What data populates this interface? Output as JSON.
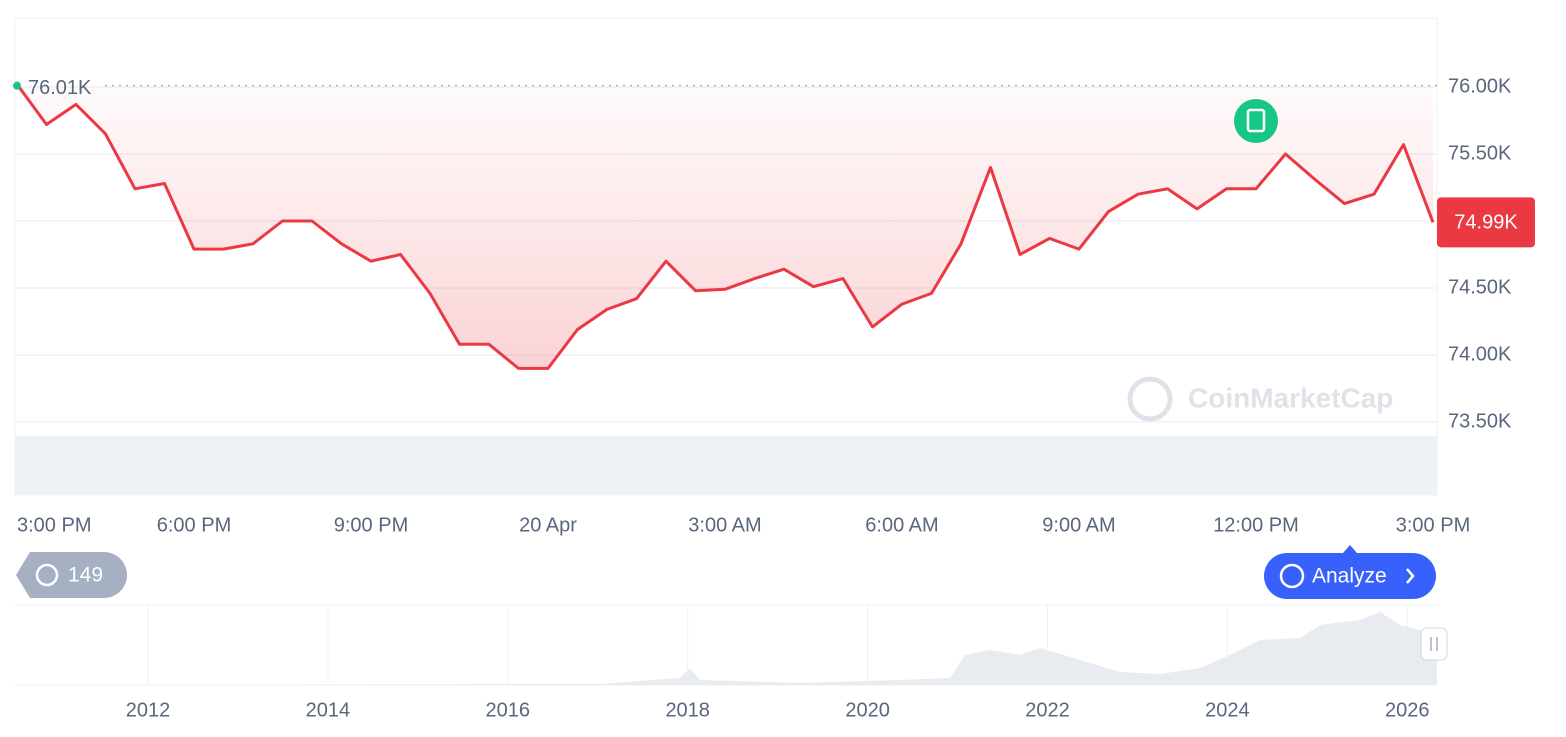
{
  "chart_data": {
    "type": "line",
    "categories": [
      "3:00 PM",
      null,
      null,
      null,
      null,
      null,
      "6:00 PM",
      null,
      null,
      null,
      null,
      null,
      "9:00 PM",
      null,
      null,
      null,
      null,
      null,
      "20 Apr",
      null,
      null,
      null,
      null,
      null,
      "3:00 AM",
      null,
      null,
      null,
      null,
      null,
      "6:00 AM",
      null,
      null,
      null,
      null,
      null,
      "9:00 AM",
      null,
      null,
      null,
      null,
      null,
      "12:00 PM",
      null,
      null,
      null,
      null,
      null,
      "3:00 PM"
    ],
    "series": [
      {
        "color": "#ea3943",
        "values": [
          76020,
          75720,
          75870,
          75650,
          75240,
          75280,
          74790,
          74790,
          74830,
          75000,
          75000,
          74830,
          74700,
          74750,
          74460,
          74080,
          74080,
          73900,
          73900,
          74190,
          74340,
          74420,
          74700,
          74480,
          74490,
          74570,
          74640,
          74510,
          74570,
          74210,
          74380,
          74460,
          74830,
          75400,
          74750,
          74870,
          74790,
          75070,
          75200,
          75240,
          75090,
          75240,
          75240,
          75500,
          75310,
          75130,
          75200,
          75570,
          74990
        ]
      }
    ],
    "ylim": [
      73500,
      76500
    ],
    "yticks": [
      {
        "value": 73500,
        "label": "73.50K"
      },
      {
        "value": 74000,
        "label": "74.00K"
      },
      {
        "value": 74500,
        "label": "74.50K"
      },
      {
        "value": 75000,
        "label": "75.00K"
      },
      {
        "value": 75500,
        "label": "75.50K"
      },
      {
        "value": 76000,
        "label": "76.00K"
      }
    ],
    "grid": true,
    "annotations": [
      {
        "value": 76010,
        "label": "76.01K"
      },
      {
        "value": 74990,
        "label": "74.99K"
      }
    ],
    "watermark": "CoinMarketCap",
    "navigator_ticks": [
      2012,
      2014,
      2016,
      2018,
      2020,
      2022,
      2024,
      2026
    ]
  },
  "controls": {
    "history_count": "149",
    "analyze": "Analyze"
  }
}
